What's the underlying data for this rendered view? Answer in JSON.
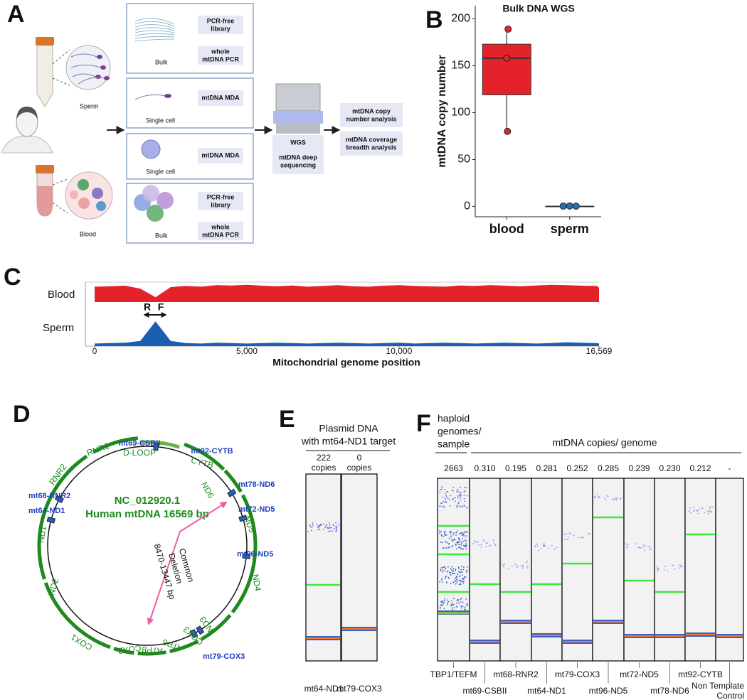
{
  "panel_a": {
    "label": "A",
    "sperm": "Sperm",
    "blood": "Blood",
    "boxes": [
      {
        "sample": "Bulk",
        "methods": [
          [
            "PCR-free",
            "library"
          ],
          [
            "whole",
            "mtDNA PCR"
          ]
        ]
      },
      {
        "sample": "Single cell",
        "methods": [
          [
            "mtDNA MDA"
          ]
        ]
      },
      {
        "sample": "Single cell",
        "methods": [
          [
            "mtDNA MDA"
          ]
        ]
      },
      {
        "sample": "Bulk",
        "methods": [
          [
            "PCR-free",
            "library"
          ],
          [
            "whole",
            "mtDNA PCR"
          ]
        ]
      }
    ],
    "sequencing": {
      "title": "WGS",
      "detail": [
        "mtDNA deep",
        "sequencing"
      ]
    },
    "analyses": [
      [
        "mtDNA copy",
        "number analysis"
      ],
      [
        "mtDNA coverage",
        "breadth analysis"
      ]
    ]
  },
  "chart_data": [
    {
      "type": "box",
      "panel": "B",
      "title": "Bulk DNA WGS",
      "y_label": "mtDNA copy number",
      "categories": [
        "blood",
        "sperm"
      ],
      "boxes": [
        {
          "min": 80,
          "q1": 119,
          "median": 158,
          "q3": 173,
          "max": 189,
          "color": "#e3222a"
        },
        {
          "min": 0,
          "q1": 0,
          "median": 0,
          "q3": 0,
          "max": 0,
          "color": "#2a6db5"
        }
      ],
      "points": [
        [
          189,
          158,
          80
        ],
        [
          0.4,
          0.5,
          0.3
        ]
      ],
      "ylim": [
        -11,
        214
      ],
      "yticks": [
        0,
        50,
        100,
        150,
        200
      ]
    },
    {
      "type": "area",
      "panel": "C",
      "x_label": "Mitochondrial genome position",
      "x": [
        0,
        500,
        1000,
        1500,
        2000,
        2500,
        3000,
        3500,
        4000,
        4500,
        5000,
        5500,
        6000,
        6500,
        7000,
        7500,
        8000,
        8500,
        9000,
        9500,
        10000,
        10500,
        11000,
        11500,
        12000,
        12500,
        13000,
        13500,
        14000,
        14500,
        15000,
        15500,
        16000,
        16500,
        16569
      ],
      "series": [
        {
          "name": "Blood",
          "color": "#e3222a",
          "values": [
            80,
            82,
            85,
            70,
            25,
            78,
            84,
            80,
            88,
            86,
            90,
            85,
            82,
            86,
            80,
            84,
            88,
            82,
            80,
            85,
            88,
            84,
            82,
            80,
            86,
            84,
            88,
            85,
            82,
            86,
            90,
            88,
            85,
            84,
            75
          ]
        },
        {
          "name": "Sperm",
          "color": "#1a5fb0",
          "values": [
            6,
            7,
            8,
            12,
            58,
            12,
            7,
            6,
            8,
            7,
            6,
            7,
            8,
            7,
            6,
            7,
            8,
            7,
            6,
            7,
            8,
            6,
            7,
            8,
            7,
            6,
            7,
            8,
            7,
            6,
            7,
            9,
            8,
            7,
            6
          ]
        }
      ],
      "ylim": [
        0,
        100
      ],
      "xlim": [
        0,
        16569
      ],
      "xticks": [
        0,
        {
          "value": 5000,
          "label": "5,000"
        },
        {
          "value": 10000,
          "label": "10,000"
        },
        {
          "value": 16569,
          "label": "16,569"
        }
      ],
      "annotations": [
        "R",
        "F"
      ]
    }
  ],
  "panel_d": {
    "label": "D",
    "title": [
      "NC_012920.1",
      "Human mtDNA 16569 bp"
    ],
    "deletion": [
      "Common",
      "Deletion",
      "8470-13447 bp"
    ],
    "genes": [
      "D-LOOP",
      "CYTB",
      "RNR1",
      "ND6",
      "RNR2",
      "ND5",
      "ND1",
      "ND2",
      "ND4",
      "COX1",
      "ND3",
      "COX3",
      "ATP6",
      "ATP8",
      "COX2"
    ],
    "primers": [
      "mt69-CSBII",
      "mt92-CYTB",
      "mt78-ND6",
      "mt72-ND5",
      "mt68-RNR2",
      "mt64-ND1",
      "mt96-ND5",
      "mt79-COX3"
    ]
  },
  "panel_e": {
    "label": "E",
    "title": [
      "Plasmid DNA",
      "with mt64-ND1 target"
    ],
    "copies": [
      [
        "222",
        "copies"
      ],
      [
        "0",
        "copies"
      ]
    ],
    "targets": [
      "mt64-ND1",
      "mt79-COX3"
    ]
  },
  "panel_f": {
    "label": "F",
    "left_header": [
      "haploid",
      "genomes/",
      "sample"
    ],
    "right_header": "mtDNA copies/ genome",
    "values": [
      "2663",
      "0.310",
      "0.195",
      "0.281",
      "0.252",
      "0.285",
      "0.239",
      "0.230",
      "0.212",
      "-"
    ],
    "targets": [
      "TBP1/TEFM",
      "mt69-CSBII",
      "mt68-RNR2",
      "mt64-ND1",
      "mt79-COX3",
      "mt96-ND5",
      "mt72-ND5",
      "mt78-ND6",
      "mt92-CYTB",
      [
        "Non Template",
        "Control"
      ]
    ]
  }
}
